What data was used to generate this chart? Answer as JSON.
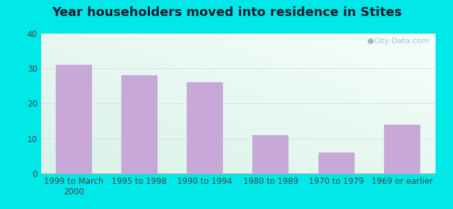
{
  "title": "Year householders moved into residence in Stites",
  "categories": [
    "1999 to March\n2000",
    "1995 to 1998",
    "1990 to 1994",
    "1980 to 1989",
    "1970 to 1979",
    "1969 or earlier"
  ],
  "values": [
    31,
    28,
    26,
    11,
    6,
    14
  ],
  "bar_color": "#c8a8d8",
  "ylim": [
    0,
    40
  ],
  "yticks": [
    0,
    10,
    20,
    30,
    40
  ],
  "background_outer": "#00e8e8",
  "grid_color": "#dddddd",
  "title_fontsize": 13,
  "tick_fontsize": 8.5,
  "watermark_text": "City-Data.com",
  "bg_top_left": "#e8f8f0",
  "bg_top_right": "#f0faf8",
  "bg_bottom_left": "#d8f0e8",
  "bg_bottom_right": "#e8f8f0"
}
